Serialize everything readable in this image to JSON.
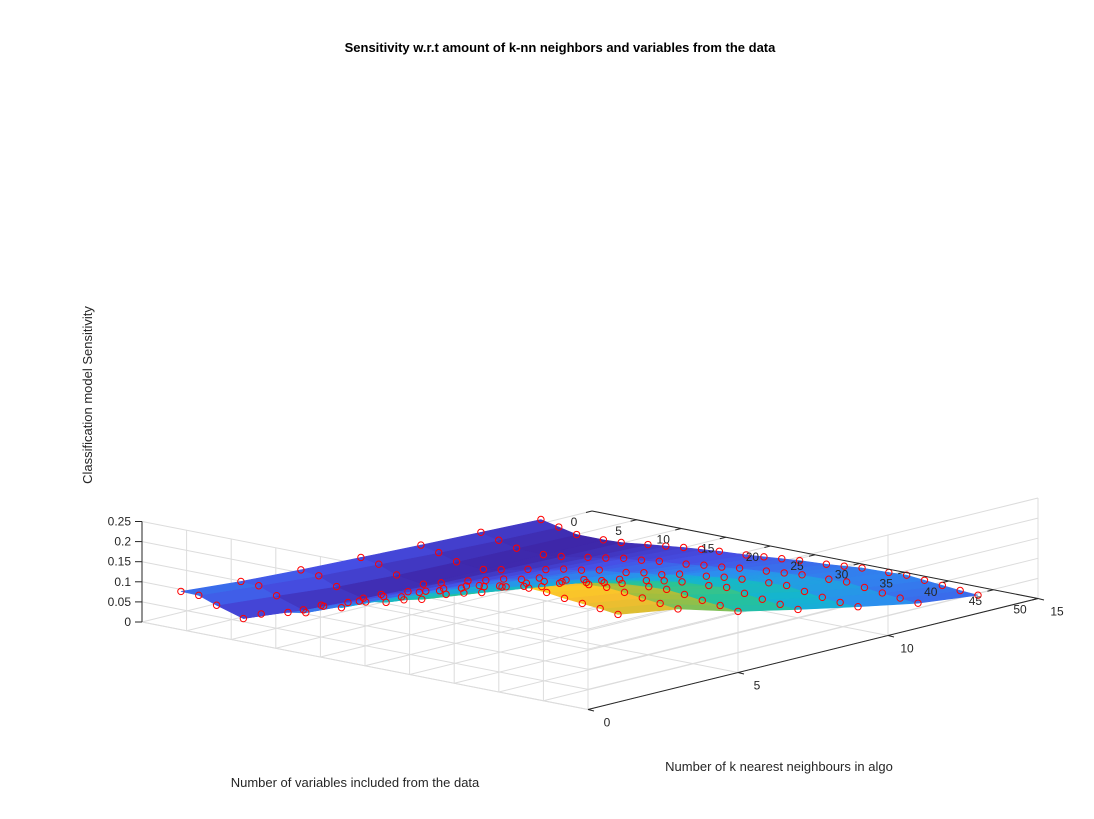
{
  "chart_data": {
    "type": "surface",
    "title": "Sensitivity w.r.t amount of k-nn neighbors and variables from the data",
    "xlabel": "Number of variables included from the data",
    "ylabel": "Number of k nearest neighbours in algo",
    "zlabel": "Classification model Sensitivity",
    "xlim": [
      0,
      50
    ],
    "ylim": [
      0,
      15
    ],
    "zlim": [
      0,
      0.25
    ],
    "xticks": [
      "0",
      "5",
      "10",
      "15",
      "20",
      "25",
      "30",
      "35",
      "40",
      "45",
      "50"
    ],
    "yticks": [
      "0",
      "5",
      "10",
      "15"
    ],
    "zticks": [
      "0",
      "0.05",
      "0.1",
      "0.15",
      "0.2",
      "0.25"
    ],
    "colormap": "parula",
    "marker_color": "#ff0000",
    "grid": true,
    "x_variables": [
      1,
      3,
      5,
      8,
      10,
      13,
      15,
      17,
      19,
      21,
      24,
      26,
      28,
      30,
      33,
      35,
      37,
      40,
      42,
      44,
      46,
      48,
      50
    ],
    "k_neighbors": [
      1,
      3,
      5,
      7,
      9,
      11,
      13
    ],
    "sensitivity_by_k": [
      {
        "k": 1,
        "values": [
          0.062,
          0.061,
          0.045,
          0.025,
          0.045,
          0.062,
          0.07,
          0.095,
          0.1,
          0.125,
          0.135,
          0.15,
          0.16,
          0.19,
          0.215,
          0.222,
          0.23,
          0.24,
          0.238,
          0.232,
          0.228,
          0.224,
          0.218
        ]
      },
      {
        "k": 3,
        "values": [
          0.05,
          0.048,
          0.032,
          0.01,
          0.03,
          0.05,
          0.06,
          0.082,
          0.09,
          0.11,
          0.118,
          0.13,
          0.14,
          0.165,
          0.185,
          0.198,
          0.206,
          0.212,
          0.214,
          0.21,
          0.205,
          0.2,
          0.195
        ]
      },
      {
        "k": 5,
        "values": [
          0.042,
          0.036,
          0.018,
          0.002,
          0.02,
          0.04,
          0.05,
          0.065,
          0.075,
          0.09,
          0.1,
          0.11,
          0.118,
          0.135,
          0.15,
          0.158,
          0.165,
          0.17,
          0.172,
          0.168,
          0.162,
          0.158,
          0.152
        ]
      },
      {
        "k": 7,
        "values": [
          0.036,
          0.028,
          0.01,
          0.0,
          0.012,
          0.03,
          0.04,
          0.052,
          0.06,
          0.072,
          0.08,
          0.09,
          0.096,
          0.108,
          0.118,
          0.126,
          0.132,
          0.136,
          0.14,
          0.134,
          0.128,
          0.124,
          0.12
        ]
      },
      {
        "k": 9,
        "values": [
          0.03,
          0.02,
          0.006,
          0.0,
          0.008,
          0.022,
          0.03,
          0.04,
          0.046,
          0.055,
          0.062,
          0.07,
          0.074,
          0.084,
          0.092,
          0.098,
          0.102,
          0.106,
          0.108,
          0.102,
          0.096,
          0.092,
          0.09
        ]
      },
      {
        "k": 11,
        "values": [
          0.025,
          0.014,
          0.003,
          0.0,
          0.004,
          0.015,
          0.022,
          0.03,
          0.034,
          0.04,
          0.046,
          0.052,
          0.056,
          0.062,
          0.068,
          0.072,
          0.076,
          0.078,
          0.08,
          0.075,
          0.07,
          0.066,
          0.062
        ]
      },
      {
        "k": 13,
        "values": [
          0.02,
          0.01,
          0.0,
          0.0,
          0.002,
          0.01,
          0.015,
          0.02,
          0.024,
          0.028,
          0.032,
          0.036,
          0.04,
          0.044,
          0.048,
          0.052,
          0.056,
          0.058,
          0.06,
          0.056,
          0.052,
          0.048,
          0.045
        ]
      }
    ]
  }
}
